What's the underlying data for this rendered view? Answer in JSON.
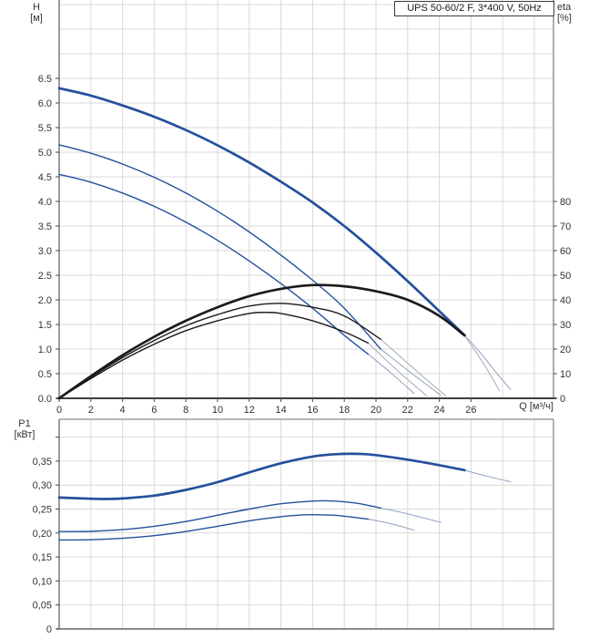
{
  "title_box": "UPS 50-60/2 F, 3*400 V, 50Hz",
  "colors": {
    "curve_blue": "#24509d",
    "curve_black": "#1b1b1b",
    "extension_blue_gray": "#9dacc8",
    "extension_gray": "#b2b5ba",
    "grid": "#d9d9d9",
    "axis_border": "#8a8a8a",
    "axis_line_dark": "#3f3f3f",
    "tick_text": "#333333"
  },
  "axis_labels": {
    "h_line1": "H",
    "h_line2": "[м]",
    "eta_line1": "eta",
    "eta_line2": "[%]",
    "p1_line1": "P1",
    "p1_line2": "[кВт]",
    "q_label": "Q [м³/ч]"
  },
  "chart_data": [
    {
      "type": "line",
      "title": "UPS 50-60/2 F, 3*400 V, 50Hz",
      "xlabel": "Q [м³/ч]",
      "ylabel_left": "H [м]",
      "ylabel_right": "eta [%]",
      "xlim": [
        0,
        31.2
      ],
      "ylim_left": [
        0,
        8.1
      ],
      "ylim_right": [
        0,
        161
      ],
      "grid": true,
      "x_ticks": [
        {
          "v": 0,
          "label": "0"
        },
        {
          "v": 2,
          "label": "2"
        },
        {
          "v": 4,
          "label": "4"
        },
        {
          "v": 6,
          "label": "6"
        },
        {
          "v": 8,
          "label": "8"
        },
        {
          "v": 10,
          "label": "10"
        },
        {
          "v": 12,
          "label": "12"
        },
        {
          "v": 14,
          "label": "14"
        },
        {
          "v": 16,
          "label": "16"
        },
        {
          "v": 18,
          "label": "18"
        },
        {
          "v": 20,
          "label": "20"
        },
        {
          "v": 22,
          "label": "22"
        },
        {
          "v": 24,
          "label": "24"
        },
        {
          "v": 26,
          "label": "26"
        }
      ],
      "y_ticks_left": [
        {
          "v": 6.5,
          "label": "6.5"
        },
        {
          "v": 6.0,
          "label": "6.0"
        },
        {
          "v": 5.5,
          "label": "5.5"
        },
        {
          "v": 5.0,
          "label": "5.0"
        },
        {
          "v": 4.5,
          "label": "4.5"
        },
        {
          "v": 4.0,
          "label": "4.0"
        },
        {
          "v": 3.5,
          "label": "3.5"
        },
        {
          "v": 3.0,
          "label": "3.0"
        },
        {
          "v": 2.5,
          "label": "2.5"
        },
        {
          "v": 2.0,
          "label": "2.0"
        },
        {
          "v": 1.5,
          "label": "1.5"
        },
        {
          "v": 1.0,
          "label": "1.0"
        },
        {
          "v": 0.5,
          "label": "0.5"
        },
        {
          "v": 0,
          "label": "0.0"
        }
      ],
      "y_ticks_right": [
        {
          "v": 80,
          "label": "80"
        },
        {
          "v": 70,
          "label": "70"
        },
        {
          "v": 60,
          "label": "60"
        },
        {
          "v": 50,
          "label": "50"
        },
        {
          "v": 40,
          "label": "40"
        },
        {
          "v": 30,
          "label": "30"
        },
        {
          "v": 20,
          "label": "20"
        },
        {
          "v": 10,
          "label": "10"
        },
        {
          "v": 0,
          "label": "0"
        }
      ],
      "series": [
        {
          "name": "head-curve-speed-3",
          "axis": "H",
          "style": "thick",
          "color": "blue",
          "points": [
            [
              0,
              6.3
            ],
            [
              2,
              6.15
            ],
            [
              4,
              5.95
            ],
            [
              6,
              5.72
            ],
            [
              8,
              5.45
            ],
            [
              10,
              5.14
            ],
            [
              12,
              4.79
            ],
            [
              14,
              4.4
            ],
            [
              16,
              3.98
            ],
            [
              18,
              3.5
            ],
            [
              20,
              2.96
            ],
            [
              22,
              2.38
            ],
            [
              24,
              1.77
            ],
            [
              25.6,
              1.28
            ]
          ]
        },
        {
          "name": "head-curve-speed-3-extension",
          "axis": "H",
          "style": "ext",
          "color": "ext_blue",
          "points": [
            [
              25.6,
              1.28
            ],
            [
              26.6,
              0.92
            ],
            [
              27.6,
              0.52
            ],
            [
              28.5,
              0.18
            ]
          ]
        },
        {
          "name": "head-curve-speed-2",
          "axis": "H",
          "style": "thin",
          "color": "blue",
          "points": [
            [
              0,
              5.15
            ],
            [
              2,
              4.98
            ],
            [
              4,
              4.76
            ],
            [
              6,
              4.49
            ],
            [
              8,
              4.17
            ],
            [
              10,
              3.8
            ],
            [
              12,
              3.38
            ],
            [
              14,
              2.91
            ],
            [
              16,
              2.4
            ],
            [
              18,
              1.83
            ],
            [
              20.3,
              1.0
            ]
          ]
        },
        {
          "name": "head-curve-speed-2-extension",
          "axis": "H",
          "style": "ext",
          "color": "ext_blue",
          "points": [
            [
              20.3,
              1.0
            ],
            [
              22.2,
              0.52
            ],
            [
              24.1,
              0.06
            ]
          ]
        },
        {
          "name": "head-curve-speed-1",
          "axis": "H",
          "style": "thin",
          "color": "blue",
          "points": [
            [
              0,
              4.55
            ],
            [
              2,
              4.39
            ],
            [
              4,
              4.17
            ],
            [
              6,
              3.9
            ],
            [
              8,
              3.58
            ],
            [
              10,
              3.21
            ],
            [
              12,
              2.79
            ],
            [
              14,
              2.33
            ],
            [
              16,
              1.83
            ],
            [
              18,
              1.28
            ],
            [
              19.5,
              0.9
            ]
          ]
        },
        {
          "name": "head-curve-speed-1-extension",
          "axis": "H",
          "style": "ext",
          "color": "ext_blue",
          "points": [
            [
              19.5,
              0.9
            ],
            [
              21,
              0.5
            ],
            [
              22.4,
              0.1
            ]
          ]
        },
        {
          "name": "eta-curve-speed-1",
          "axis": "eta",
          "style": "thin",
          "color": "black",
          "points": [
            [
              0,
              0
            ],
            [
              2,
              8
            ],
            [
              4,
              15.5
            ],
            [
              6,
              22
            ],
            [
              8,
              27.5
            ],
            [
              10,
              31.5
            ],
            [
              12,
              34.5
            ],
            [
              13,
              34.9
            ],
            [
              14,
              34.5
            ],
            [
              16,
              31.5
            ],
            [
              18,
              27
            ],
            [
              19.5,
              22.5
            ]
          ]
        },
        {
          "name": "eta-curve-speed-1-extension",
          "axis": "eta",
          "style": "ext",
          "color": "ext_gray",
          "points": [
            [
              19.5,
              22.5
            ],
            [
              21.4,
              11
            ],
            [
              23.2,
              1
            ]
          ]
        },
        {
          "name": "eta-curve-speed-2",
          "axis": "eta",
          "style": "thin",
          "color": "black",
          "points": [
            [
              0,
              0
            ],
            [
              2,
              8.5
            ],
            [
              4,
              16.5
            ],
            [
              6,
              23.5
            ],
            [
              8,
              29.5
            ],
            [
              10,
              34
            ],
            [
              12,
              37.5
            ],
            [
              14,
              38.6
            ],
            [
              16,
              37
            ],
            [
              18,
              33.5
            ],
            [
              20.3,
              24
            ]
          ]
        },
        {
          "name": "eta-curve-speed-2-extension",
          "axis": "eta",
          "style": "ext",
          "color": "ext_gray",
          "points": [
            [
              20.3,
              24
            ],
            [
              22.4,
              12
            ],
            [
              24.4,
              1
            ]
          ]
        },
        {
          "name": "eta-curve-speed-3",
          "axis": "eta",
          "style": "thick",
          "color": "black",
          "points": [
            [
              0,
              0
            ],
            [
              2,
              9
            ],
            [
              4,
              17.5
            ],
            [
              6,
              25
            ],
            [
              8,
              31.5
            ],
            [
              10,
              37
            ],
            [
              12,
              41.5
            ],
            [
              14,
              44.5
            ],
            [
              16,
              46
            ],
            [
              18,
              45.5
            ],
            [
              20,
              43.5
            ],
            [
              22,
              40
            ],
            [
              24,
              33.5
            ],
            [
              25.6,
              25.5
            ]
          ]
        },
        {
          "name": "eta-curve-speed-3-extension",
          "axis": "eta",
          "style": "ext",
          "color": "ext_gray",
          "points": [
            [
              25.6,
              25.5
            ],
            [
              26.8,
              14
            ],
            [
              27.8,
              3
            ]
          ]
        }
      ]
    },
    {
      "type": "line",
      "title": "",
      "xlabel": "Q [м³/ч]",
      "ylabel_left": "P1 [кВт]",
      "xlim": [
        0,
        31.2
      ],
      "ylim_left": [
        0,
        0.437
      ],
      "grid": true,
      "y_ticks_left": [
        {
          "v": 0.4,
          "label": ""
        },
        {
          "v": 0.35,
          "label": "0,35"
        },
        {
          "v": 0.3,
          "label": "0,30"
        },
        {
          "v": 0.25,
          "label": "0,25"
        },
        {
          "v": 0.2,
          "label": "0,20"
        },
        {
          "v": 0.15,
          "label": "0,15"
        },
        {
          "v": 0.1,
          "label": "0,10"
        },
        {
          "v": 0.05,
          "label": "0,05"
        },
        {
          "v": 0,
          "label": "0"
        }
      ],
      "series": [
        {
          "name": "power-curve-speed-3",
          "axis": "P",
          "style": "thick",
          "color": "blue",
          "points": [
            [
              0,
              0.274
            ],
            [
              2,
              0.2715
            ],
            [
              3,
              0.271
            ],
            [
              4,
              0.272
            ],
            [
              6,
              0.278
            ],
            [
              8,
              0.29
            ],
            [
              10,
              0.306
            ],
            [
              12,
              0.3265
            ],
            [
              14,
              0.3455
            ],
            [
              16,
              0.3595
            ],
            [
              17.5,
              0.3645
            ],
            [
              19,
              0.365
            ],
            [
              20,
              0.3625
            ],
            [
              22,
              0.353
            ],
            [
              24,
              0.3415
            ],
            [
              25.6,
              0.331
            ]
          ]
        },
        {
          "name": "power-curve-speed-3-extension",
          "axis": "P",
          "style": "ext",
          "color": "ext_blue",
          "points": [
            [
              25.6,
              0.331
            ],
            [
              27,
              0.3185
            ],
            [
              28.5,
              0.307
            ]
          ]
        },
        {
          "name": "power-curve-speed-2",
          "axis": "P",
          "style": "thin",
          "color": "blue",
          "points": [
            [
              0,
              0.203
            ],
            [
              2,
              0.2035
            ],
            [
              4,
              0.207
            ],
            [
              6,
              0.214
            ],
            [
              8,
              0.224
            ],
            [
              10,
              0.237
            ],
            [
              12,
              0.25
            ],
            [
              14,
              0.261
            ],
            [
              16,
              0.2665
            ],
            [
              17,
              0.267
            ],
            [
              18,
              0.265
            ],
            [
              19,
              0.261
            ],
            [
              20.3,
              0.252
            ]
          ]
        },
        {
          "name": "power-curve-speed-2-extension",
          "axis": "P",
          "style": "ext",
          "color": "ext_blue",
          "points": [
            [
              20.3,
              0.252
            ],
            [
              22,
              0.24
            ],
            [
              24.1,
              0.222
            ]
          ]
        },
        {
          "name": "power-curve-speed-1",
          "axis": "P",
          "style": "thin",
          "color": "blue",
          "points": [
            [
              0,
              0.1855
            ],
            [
              2,
              0.186
            ],
            [
              4,
              0.189
            ],
            [
              6,
              0.1945
            ],
            [
              8,
              0.203
            ],
            [
              10,
              0.214
            ],
            [
              12,
              0.2255
            ],
            [
              14,
              0.234
            ],
            [
              15.5,
              0.238
            ],
            [
              17,
              0.2375
            ],
            [
              18,
              0.235
            ],
            [
              19.5,
              0.229
            ]
          ]
        },
        {
          "name": "power-curve-speed-1-extension",
          "axis": "P",
          "style": "ext",
          "color": "ext_blue",
          "points": [
            [
              19.5,
              0.229
            ],
            [
              21,
              0.219
            ],
            [
              22.4,
              0.206
            ]
          ]
        }
      ]
    }
  ]
}
